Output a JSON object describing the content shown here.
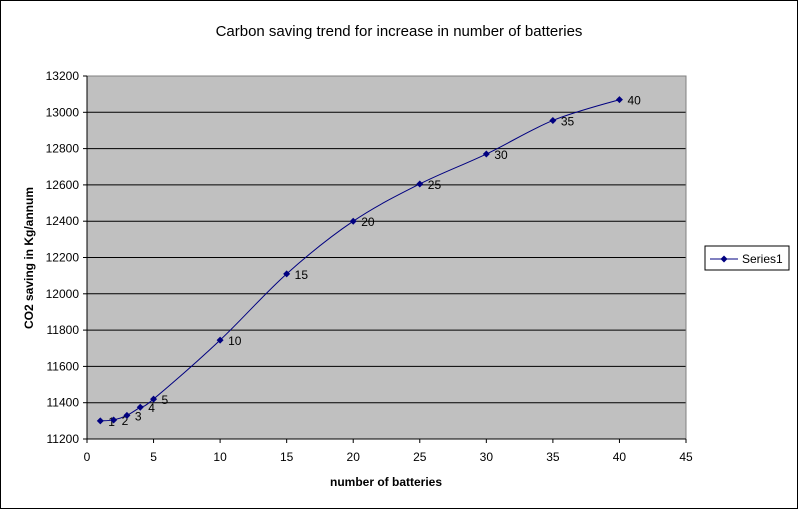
{
  "chart_data": {
    "type": "line",
    "title": "Carbon saving trend for increase in number of batteries",
    "xlabel": "number of batteries",
    "ylabel": "CO2 saving in Kg/annum",
    "xlim": [
      0,
      45
    ],
    "ylim": [
      11200,
      13200
    ],
    "x_ticks": [
      0,
      5,
      10,
      15,
      20,
      25,
      30,
      35,
      40,
      45
    ],
    "y_ticks": [
      11200,
      11400,
      11600,
      11800,
      12000,
      12200,
      12400,
      12600,
      12800,
      13000,
      13200
    ],
    "grid": "horizontal",
    "plot_background": "#C0C0C0",
    "series_color": "#000080",
    "legend_position": "right",
    "series": [
      {
        "name": "Series1",
        "x": [
          1,
          2,
          3,
          4,
          5,
          10,
          15,
          20,
          25,
          30,
          35,
          40
        ],
        "y": [
          11300,
          11305,
          11330,
          11375,
          11420,
          11745,
          12110,
          12400,
          12605,
          12770,
          12955,
          13070
        ],
        "labels": [
          "1",
          "2",
          "3",
          "4",
          "5",
          "10",
          "15",
          "20",
          "25",
          "30",
          "35",
          "40"
        ]
      }
    ]
  }
}
